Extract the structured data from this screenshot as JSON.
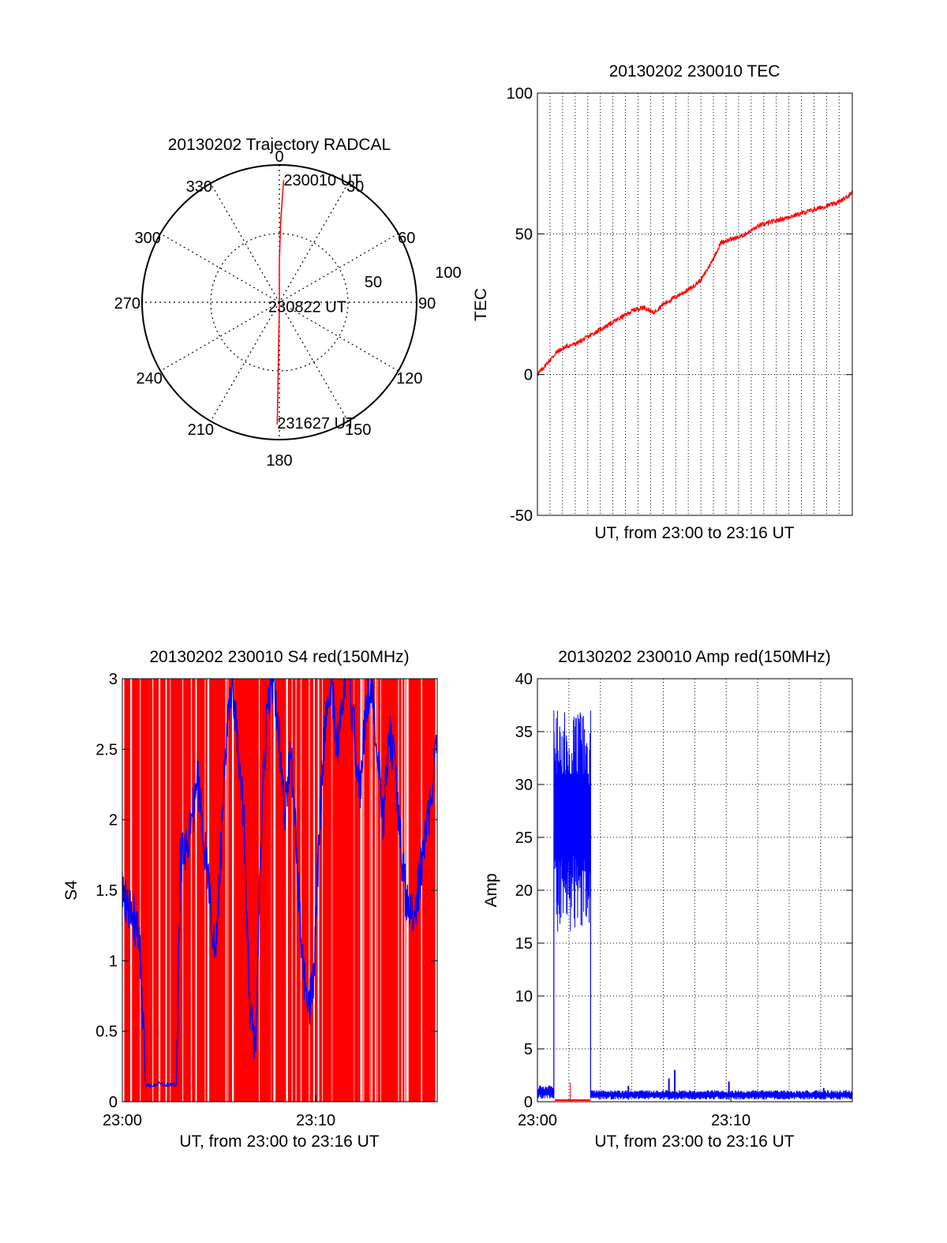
{
  "colors": {
    "series_red": "#ff0000",
    "series_blue": "#0000ff",
    "axis": "#000000",
    "grid": "#000000"
  },
  "chart_data": [
    {
      "type": "polar",
      "title": "20130202 Trajectory RADCAL",
      "angle_labels": [
        "0",
        "30",
        "60",
        "90",
        "120",
        "150",
        "180",
        "210",
        "240",
        "270",
        "300",
        "330"
      ],
      "angles_deg": [
        0,
        30,
        60,
        90,
        120,
        150,
        180,
        210,
        240,
        270,
        300,
        330
      ],
      "radius_labels": [
        "50",
        "100"
      ],
      "radius_values": [
        50,
        100
      ],
      "rmax": 100,
      "grid": true,
      "series": [
        {
          "color": "#ff0000",
          "points": [
            {
              "az": 2,
              "r": 89
            },
            {
              "az": 1,
              "r": 60
            },
            {
              "az": 0,
              "r": 30
            },
            {
              "az": 180,
              "r": 2
            },
            {
              "az": 181,
              "r": 40
            },
            {
              "az": 181,
              "r": 80
            },
            {
              "az": 181,
              "r": 89
            }
          ]
        }
      ],
      "annotations": [
        {
          "text": "230010 UT",
          "az": 2,
          "r": 89
        },
        {
          "text": "230822 UT",
          "az": 180,
          "r": 2
        },
        {
          "text": "231627 UT",
          "az": 181,
          "r": 89
        }
      ]
    },
    {
      "type": "line",
      "title": "20130202 230010 TEC",
      "xlabel": "UT, from 23:00 to 23:16 UT",
      "ylabel": "TEC",
      "xlim": [
        0,
        16.28
      ],
      "ylim": [
        -50,
        100
      ],
      "yticks": [
        -50,
        0,
        50,
        100
      ],
      "ytick_labels": [
        "-50",
        "0",
        "50",
        "100"
      ],
      "xticks": [],
      "xtick_labels": [],
      "xgrid_step": 0.65,
      "ygrid": [
        0,
        50
      ],
      "series": [
        {
          "color": "#ff0000",
          "x": [
            0,
            0.5,
            1,
            1.5,
            2,
            2.5,
            3,
            3.5,
            4,
            4.5,
            5,
            5.5,
            6,
            6.5,
            7,
            7.5,
            8,
            8.5,
            9,
            9.5,
            10,
            10.5,
            11,
            11.5,
            12,
            12.5,
            13,
            13.5,
            14,
            14.5,
            15,
            15.5,
            16,
            16.28
          ],
          "y": [
            0,
            4,
            8,
            10,
            11,
            13,
            15,
            17,
            19,
            21,
            23,
            24,
            22,
            25,
            27,
            29,
            31,
            34,
            40,
            47,
            48,
            49,
            51,
            53,
            54,
            55,
            56,
            57,
            58,
            59,
            60,
            61,
            63,
            65
          ]
        }
      ]
    },
    {
      "type": "line",
      "title": "20130202 230010 S4 red(150MHz)",
      "xlabel": "UT, from 23:00 to 23:16 UT",
      "ylabel": "S4",
      "xlim": [
        0,
        16.28
      ],
      "ylim": [
        0,
        3
      ],
      "yticks": [
        0,
        0.5,
        1,
        1.5,
        2,
        2.5,
        3
      ],
      "ytick_labels": [
        "0",
        "0.5",
        "1",
        "1.5",
        "2",
        "2.5",
        "3"
      ],
      "xticks": [
        0,
        10
      ],
      "xtick_labels": [
        "23:00",
        "23:10"
      ],
      "series": [
        {
          "color": "#ff0000",
          "style": "dense vertical spikes from 0 to 3",
          "spike_x": [
            0.1,
            0.25,
            0.5,
            0.75,
            0.95,
            1.1,
            1.35,
            1.6,
            1.8,
            2.0,
            2.3,
            2.5,
            2.7,
            2.9,
            3.15,
            3.4,
            3.6,
            3.85,
            4.0,
            4.3,
            4.5,
            4.8,
            5.0,
            5.2,
            5.5,
            5.8,
            6.0,
            6.2,
            6.45,
            6.6,
            6.85,
            7.1,
            7.3,
            7.55,
            7.7,
            7.95,
            8.2,
            8.35,
            8.6,
            8.8,
            9.0,
            9.3,
            9.5,
            9.7,
            9.95,
            10.2,
            10.4,
            10.6,
            10.9,
            11.1,
            11.3,
            11.5,
            11.8,
            12.0,
            12.2,
            12.5,
            12.7,
            12.95,
            13.2,
            13.4,
            13.6,
            13.85,
            14.1,
            14.3,
            14.5,
            14.8,
            15.0,
            15.2,
            15.5,
            15.7,
            15.9,
            16.1
          ]
        },
        {
          "color": "#0000ff",
          "x": [
            0,
            0.3,
            0.6,
            0.9,
            1.2,
            1.5,
            2.0,
            2.5,
            2.8,
            3.0,
            3.3,
            3.6,
            3.9,
            4.2,
            4.5,
            4.8,
            5.1,
            5.4,
            5.7,
            6.0,
            6.3,
            6.6,
            6.9,
            7.2,
            7.5,
            7.8,
            8.1,
            8.4,
            8.7,
            9.0,
            9.3,
            9.6,
            9.9,
            10.2,
            10.5,
            10.8,
            11.1,
            11.4,
            11.7,
            12.0,
            12.3,
            12.6,
            12.9,
            13.2,
            13.5,
            13.8,
            14.1,
            14.4,
            14.7,
            15.0,
            15.3,
            15.6,
            15.9,
            16.28
          ],
          "y": [
            1.5,
            1.35,
            1.3,
            1.1,
            0.12,
            0.12,
            0.13,
            0.12,
            0.12,
            1.7,
            1.8,
            2.0,
            2.3,
            1.9,
            1.5,
            1.0,
            1.8,
            2.6,
            3.0,
            2.4,
            2.0,
            0.6,
            0.4,
            2.0,
            2.8,
            3.0,
            2.6,
            2.0,
            2.5,
            1.8,
            1.0,
            0.6,
            0.9,
            2.0,
            2.7,
            3.0,
            2.5,
            2.9,
            3.0,
            2.6,
            2.2,
            2.8,
            3.0,
            2.4,
            2.0,
            2.6,
            2.4,
            1.8,
            1.4,
            1.3,
            1.5,
            1.8,
            2.1,
            2.5
          ]
        }
      ]
    },
    {
      "type": "line",
      "title": "20130202 230010 Amp red(150MHz)",
      "xlabel": "UT, from 23:00 to 23:16 UT",
      "ylabel": "Amp",
      "xlim": [
        0,
        16.28
      ],
      "ylim": [
        0,
        40
      ],
      "yticks": [
        0,
        5,
        10,
        15,
        20,
        25,
        30,
        35,
        40
      ],
      "ytick_labels": [
        "0",
        "5",
        "10",
        "15",
        "20",
        "25",
        "30",
        "35",
        "40"
      ],
      "xticks": [
        0,
        10
      ],
      "xtick_labels": [
        "23:00",
        "23:10"
      ],
      "xgrid_step": 1.627,
      "ygrid": [
        5,
        10,
        15,
        20,
        25,
        30,
        35
      ],
      "series": [
        {
          "color": "#0000ff",
          "style": "noisy filled band",
          "segments": [
            {
              "x0": 0,
              "x1": 0.85,
              "low": 0.3,
              "high": 1.6
            },
            {
              "x0": 0.85,
              "x1": 2.75,
              "low": 16,
              "high": 37
            },
            {
              "x0": 2.75,
              "x1": 16.28,
              "low": 0.2,
              "high": 1.1
            }
          ],
          "peaks": [
            {
              "x": 4.7,
              "y": 1.5
            },
            {
              "x": 6.8,
              "y": 2.2
            },
            {
              "x": 7.1,
              "y": 3.0
            },
            {
              "x": 9.9,
              "y": 1.9
            },
            {
              "x": 14.8,
              "y": 1.3
            }
          ]
        },
        {
          "color": "#ff0000",
          "x": [
            0.9,
            2.75
          ],
          "y": [
            0.15,
            0.15
          ],
          "spikes": [
            {
              "x": 1.7,
              "y": 1.8
            }
          ]
        }
      ]
    }
  ]
}
